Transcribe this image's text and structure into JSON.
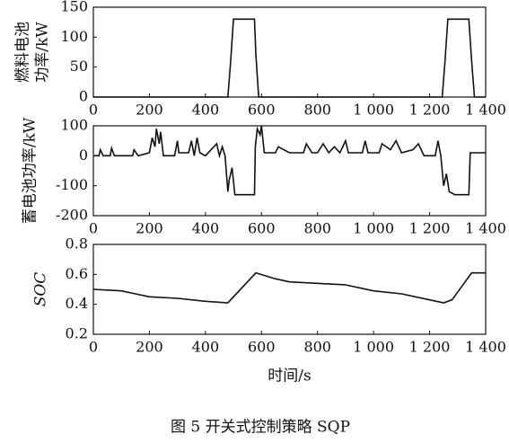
{
  "chart_data": [
    {
      "type": "line",
      "ylabel": [
        "燃料电池",
        "功率/kW"
      ],
      "color": "#111111",
      "x": [
        0,
        480,
        490,
        500,
        575,
        580,
        590,
        1245,
        1255,
        1265,
        1340,
        1350,
        1360,
        1400
      ],
      "values": [
        0,
        0,
        60,
        130,
        130,
        70,
        0,
        0,
        60,
        130,
        130,
        60,
        0,
        0
      ],
      "xlim": [
        0,
        1400
      ],
      "xticks": [
        0,
        200,
        400,
        600,
        800,
        {
          "value": 1000,
          "label": "1 000"
        },
        {
          "value": 1200,
          "label": "1 200"
        },
        {
          "value": 1400,
          "label": "1 400"
        }
      ],
      "ylim": [
        0,
        150
      ],
      "yticks": [
        0,
        50,
        100,
        150
      ],
      "grid": false
    },
    {
      "type": "line",
      "ylabel": "蓄电池功率/kW",
      "color": "#111111",
      "x": [
        0,
        20,
        25,
        35,
        60,
        65,
        75,
        140,
        145,
        160,
        200,
        210,
        220,
        225,
        235,
        240,
        250,
        290,
        300,
        305,
        340,
        350,
        360,
        370,
        380,
        400,
        440,
        450,
        460,
        470,
        480,
        485,
        495,
        505,
        575,
        578,
        585,
        595,
        600,
        610,
        650,
        660,
        700,
        750,
        760,
        780,
        800,
        820,
        840,
        860,
        880,
        900,
        910,
        960,
        970,
        980,
        1020,
        1030,
        1060,
        1080,
        1100,
        1140,
        1160,
        1180,
        1220,
        1230,
        1240,
        1250,
        1260,
        1270,
        1290,
        1340,
        1345,
        1400
      ],
      "values": [
        0,
        0,
        20,
        0,
        0,
        25,
        0,
        0,
        20,
        0,
        10,
        60,
        30,
        90,
        40,
        80,
        0,
        0,
        50,
        10,
        10,
        50,
        0,
        60,
        10,
        0,
        40,
        0,
        30,
        0,
        -120,
        -80,
        -40,
        -130,
        -130,
        30,
        90,
        70,
        100,
        10,
        10,
        30,
        10,
        10,
        40,
        10,
        10,
        40,
        10,
        30,
        10,
        50,
        10,
        10,
        50,
        10,
        10,
        40,
        20,
        50,
        10,
        20,
        40,
        0,
        0,
        50,
        0,
        -100,
        -60,
        -120,
        -130,
        -130,
        10,
        10
      ],
      "xlim": [
        0,
        1400
      ],
      "xticks": [
        0,
        200,
        400,
        600,
        800,
        {
          "value": 1000,
          "label": "1 000"
        },
        {
          "value": 1200,
          "label": "1 200"
        },
        {
          "value": 1400,
          "label": "1 400"
        }
      ],
      "ylim": [
        -200,
        100
      ],
      "yticks": [
        -200,
        -100,
        0,
        100
      ],
      "grid": false
    },
    {
      "type": "line",
      "ylabel": "SOC",
      "xlabel": "时间/s",
      "color": "#111111",
      "x": [
        0,
        100,
        150,
        200,
        300,
        400,
        480,
        580,
        650,
        700,
        900,
        1000,
        1100,
        1200,
        1250,
        1280,
        1350,
        1400
      ],
      "values": [
        0.5,
        0.49,
        0.47,
        0.45,
        0.44,
        0.42,
        0.41,
        0.61,
        0.57,
        0.55,
        0.53,
        0.49,
        0.47,
        0.43,
        0.41,
        0.43,
        0.61,
        0.61
      ],
      "xlim": [
        0,
        1400
      ],
      "xticks": [
        0,
        200,
        400,
        600,
        800,
        {
          "value": 1000,
          "label": "1 000"
        },
        {
          "value": 1200,
          "label": "1 200"
        },
        {
          "value": 1400,
          "label": "1 400"
        }
      ],
      "ylim": [
        0.2,
        0.8
      ],
      "yticks": [
        0.2,
        0.4,
        0.6,
        0.8
      ],
      "grid": false
    }
  ],
  "caption": "图 5   开关式控制策略 SQP"
}
